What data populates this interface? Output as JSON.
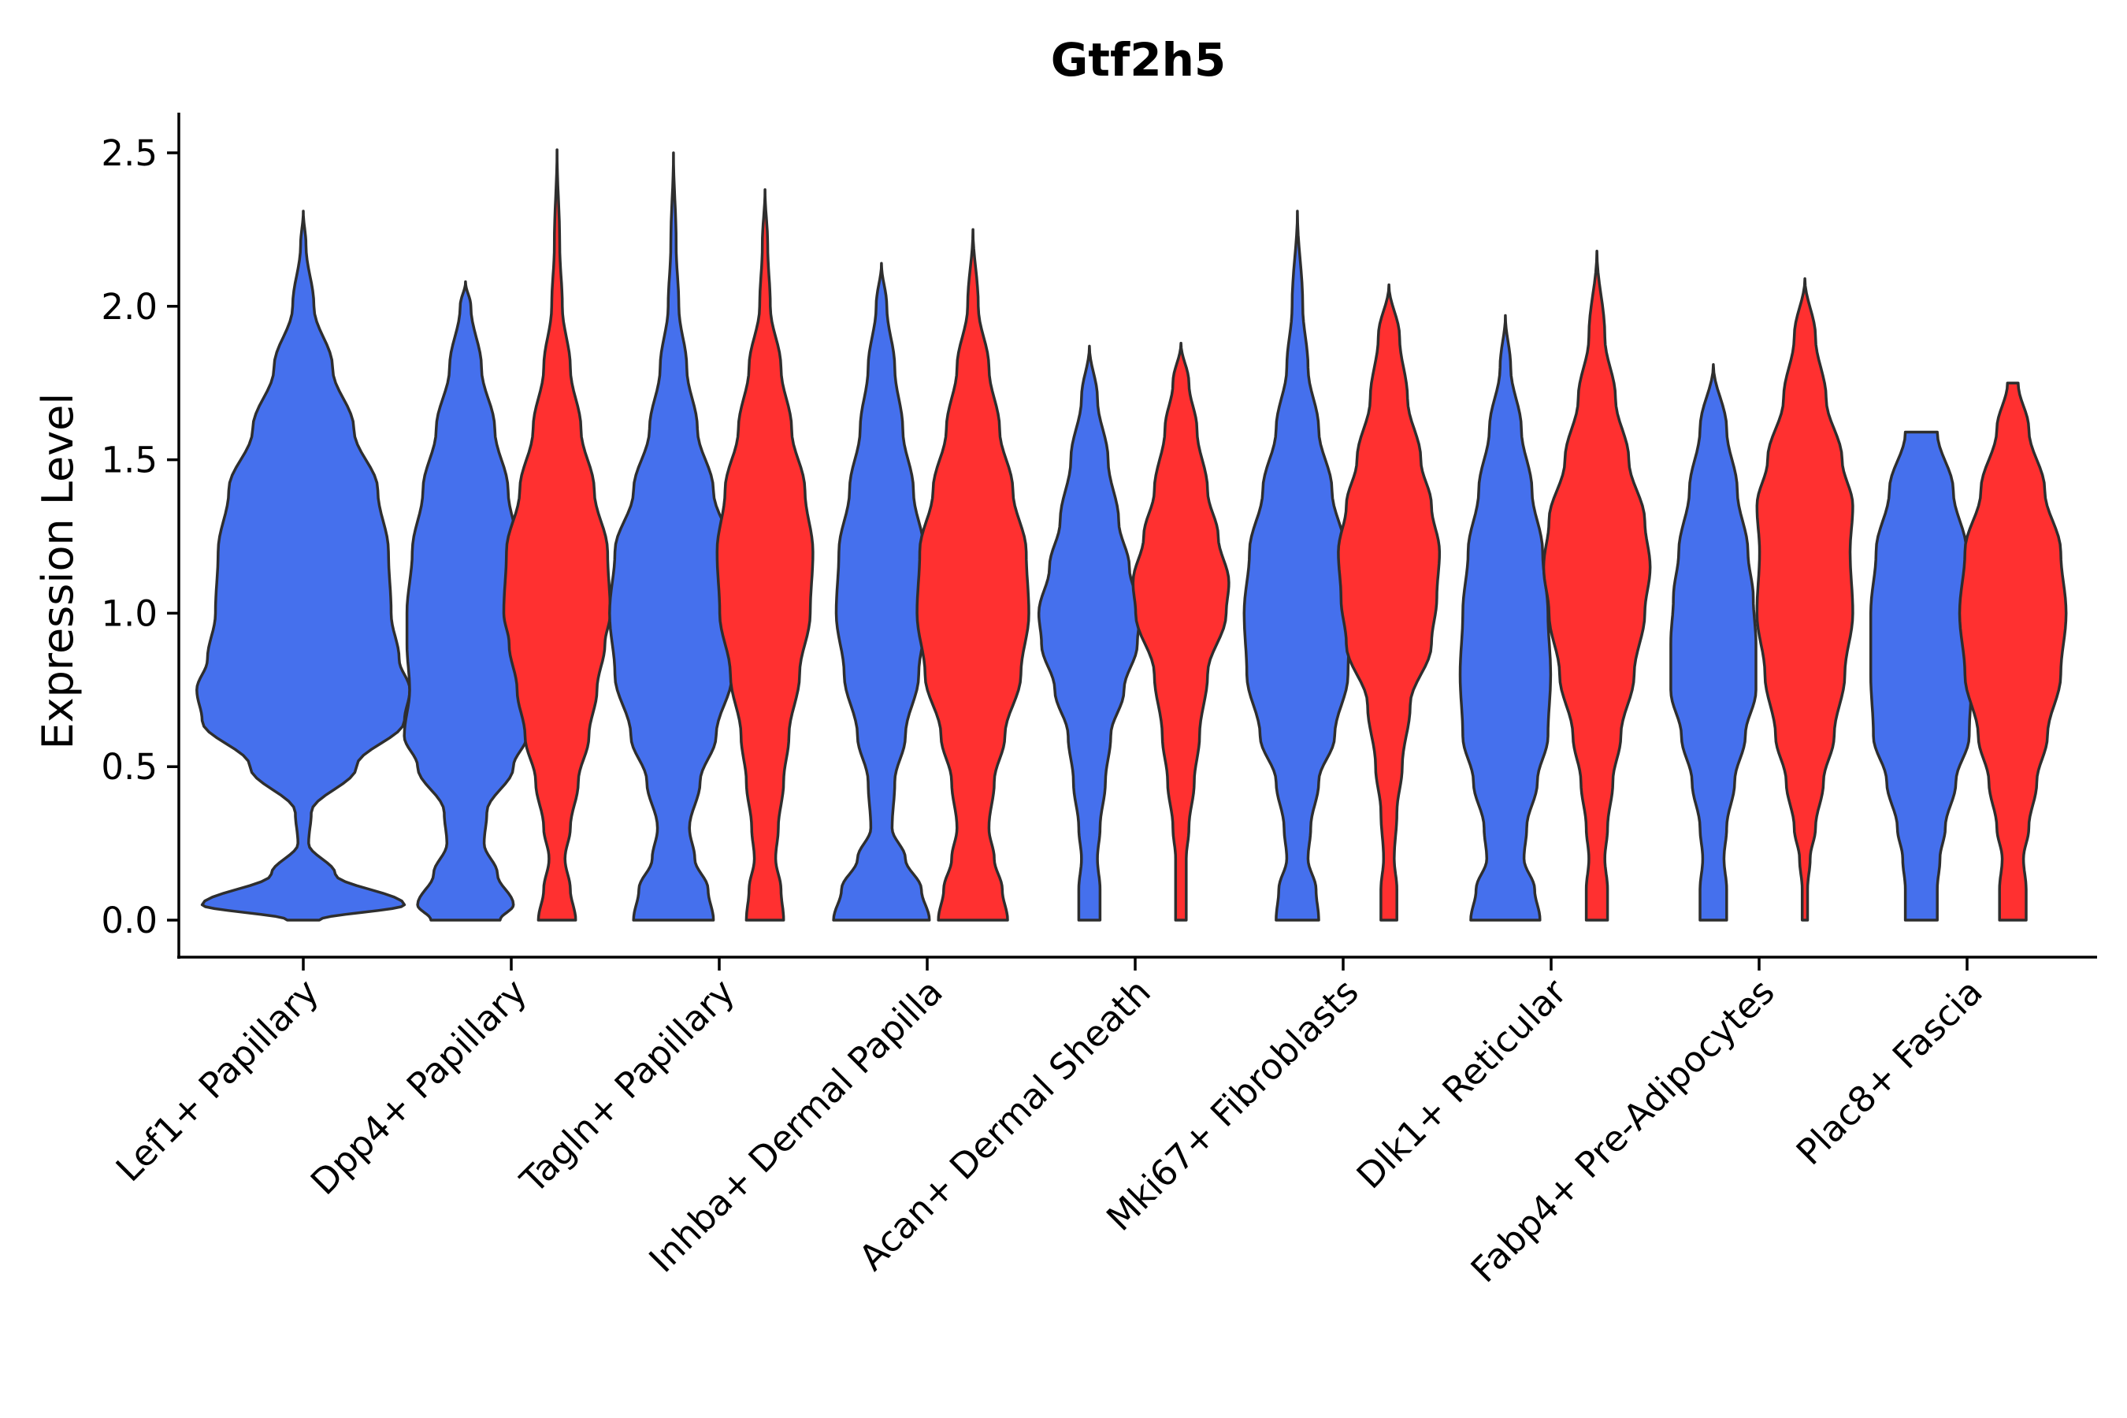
{
  "chart_data": {
    "type": "violin",
    "title": "Gtf2h5",
    "xlabel": "",
    "ylabel": "Expression Level",
    "ylim": [
      -0.12,
      2.63
    ],
    "yticks": [
      0.0,
      0.5,
      1.0,
      1.5,
      2.0,
      2.5
    ],
    "ytick_labels": [
      "0.0",
      "0.5",
      "1.0",
      "1.5",
      "2.0",
      "2.5"
    ],
    "categories": [
      "Lef1+ Papillary",
      "Dpp4+ Papillary",
      "Tagln+ Papillary",
      "Inhba+ Dermal Papilla",
      "Acan+ Dermal Sheath",
      "Mki67+ Fibroblasts",
      "Dlk1+ Reticular",
      "Fabp4+ Pre-Adipocytes",
      "Plac8+ Fascia"
    ],
    "series_colors": {
      "group1": "#4570ED",
      "group2": "#FF3030"
    },
    "violins": [
      {
        "category": 0,
        "color": "#4570ED",
        "offset": 0.0,
        "max": 2.31,
        "profile": [
          [
            0,
            0.06
          ],
          [
            0.05,
            0.38
          ],
          [
            0.15,
            0.12
          ],
          [
            0.25,
            0.02
          ],
          [
            0.35,
            0.03
          ],
          [
            0.5,
            0.2
          ],
          [
            0.65,
            0.38
          ],
          [
            0.75,
            0.4
          ],
          [
            0.85,
            0.36
          ],
          [
            1.0,
            0.33
          ],
          [
            1.2,
            0.32
          ],
          [
            1.4,
            0.28
          ],
          [
            1.6,
            0.19
          ],
          [
            1.8,
            0.11
          ],
          [
            2.0,
            0.04
          ],
          [
            2.2,
            0.01
          ],
          [
            2.31,
            0
          ]
        ]
      },
      {
        "category": 1,
        "color": "#4570ED",
        "offset": -0.22,
        "max": 2.08,
        "profile": [
          [
            0,
            0.13
          ],
          [
            0.05,
            0.18
          ],
          [
            0.15,
            0.12
          ],
          [
            0.25,
            0.07
          ],
          [
            0.35,
            0.08
          ],
          [
            0.5,
            0.18
          ],
          [
            0.6,
            0.23
          ],
          [
            0.75,
            0.21
          ],
          [
            0.9,
            0.22
          ],
          [
            1.0,
            0.22
          ],
          [
            1.2,
            0.2
          ],
          [
            1.4,
            0.16
          ],
          [
            1.6,
            0.11
          ],
          [
            1.8,
            0.06
          ],
          [
            2.0,
            0.02
          ],
          [
            2.08,
            0
          ]
        ]
      },
      {
        "category": 1,
        "color": "#FF3030",
        "offset": 0.22,
        "max": 2.51,
        "profile": [
          [
            0,
            0.07
          ],
          [
            0.1,
            0.05
          ],
          [
            0.2,
            0.03
          ],
          [
            0.3,
            0.05
          ],
          [
            0.45,
            0.08
          ],
          [
            0.6,
            0.12
          ],
          [
            0.75,
            0.15
          ],
          [
            0.9,
            0.18
          ],
          [
            1.0,
            0.2
          ],
          [
            1.2,
            0.19
          ],
          [
            1.4,
            0.14
          ],
          [
            1.6,
            0.09
          ],
          [
            1.8,
            0.05
          ],
          [
            2.0,
            0.02
          ],
          [
            2.2,
            0.01
          ],
          [
            2.51,
            0
          ]
        ]
      },
      {
        "category": 2,
        "color": "#4570ED",
        "offset": -0.22,
        "max": 2.5,
        "profile": [
          [
            0,
            0.15
          ],
          [
            0.1,
            0.13
          ],
          [
            0.2,
            0.08
          ],
          [
            0.3,
            0.06
          ],
          [
            0.45,
            0.1
          ],
          [
            0.6,
            0.16
          ],
          [
            0.8,
            0.22
          ],
          [
            1.0,
            0.24
          ],
          [
            1.2,
            0.22
          ],
          [
            1.4,
            0.15
          ],
          [
            1.6,
            0.09
          ],
          [
            1.8,
            0.05
          ],
          [
            2.0,
            0.02
          ],
          [
            2.2,
            0.01
          ],
          [
            2.5,
            0
          ]
        ]
      },
      {
        "category": 2,
        "color": "#FF3030",
        "offset": 0.22,
        "max": 2.38,
        "profile": [
          [
            0,
            0.07
          ],
          [
            0.1,
            0.06
          ],
          [
            0.2,
            0.04
          ],
          [
            0.3,
            0.05
          ],
          [
            0.45,
            0.07
          ],
          [
            0.6,
            0.09
          ],
          [
            0.8,
            0.13
          ],
          [
            1.0,
            0.17
          ],
          [
            1.2,
            0.18
          ],
          [
            1.4,
            0.15
          ],
          [
            1.6,
            0.1
          ],
          [
            1.8,
            0.06
          ],
          [
            2.0,
            0.02
          ],
          [
            2.2,
            0.01
          ],
          [
            2.38,
            0
          ]
        ]
      },
      {
        "category": 3,
        "color": "#4570ED",
        "offset": -0.22,
        "max": 2.14,
        "profile": [
          [
            0,
            0.18
          ],
          [
            0.1,
            0.15
          ],
          [
            0.2,
            0.09
          ],
          [
            0.3,
            0.04
          ],
          [
            0.45,
            0.05
          ],
          [
            0.6,
            0.09
          ],
          [
            0.8,
            0.14
          ],
          [
            1.0,
            0.17
          ],
          [
            1.2,
            0.16
          ],
          [
            1.4,
            0.12
          ],
          [
            1.6,
            0.08
          ],
          [
            1.8,
            0.05
          ],
          [
            2.0,
            0.02
          ],
          [
            2.14,
            0
          ]
        ]
      },
      {
        "category": 3,
        "color": "#FF3030",
        "offset": 0.22,
        "max": 2.25,
        "profile": [
          [
            0,
            0.13
          ],
          [
            0.1,
            0.11
          ],
          [
            0.2,
            0.08
          ],
          [
            0.3,
            0.06
          ],
          [
            0.45,
            0.08
          ],
          [
            0.6,
            0.12
          ],
          [
            0.8,
            0.18
          ],
          [
            1.0,
            0.21
          ],
          [
            1.2,
            0.2
          ],
          [
            1.4,
            0.15
          ],
          [
            1.6,
            0.1
          ],
          [
            1.8,
            0.06
          ],
          [
            2.0,
            0.02
          ],
          [
            2.25,
            0
          ]
        ]
      },
      {
        "category": 4,
        "color": "#4570ED",
        "offset": -0.22,
        "max": 1.87,
        "profile": [
          [
            0,
            0.04
          ],
          [
            0.1,
            0.04
          ],
          [
            0.2,
            0.03
          ],
          [
            0.3,
            0.04
          ],
          [
            0.45,
            0.06
          ],
          [
            0.6,
            0.08
          ],
          [
            0.75,
            0.13
          ],
          [
            0.9,
            0.18
          ],
          [
            1.0,
            0.19
          ],
          [
            1.15,
            0.15
          ],
          [
            1.3,
            0.11
          ],
          [
            1.5,
            0.07
          ],
          [
            1.7,
            0.03
          ],
          [
            1.87,
            0
          ]
        ]
      },
      {
        "category": 4,
        "color": "#FF3030",
        "offset": 0.22,
        "max": 1.88,
        "profile": [
          [
            0,
            0.02
          ],
          [
            0.1,
            0.02
          ],
          [
            0.2,
            0.02
          ],
          [
            0.3,
            0.03
          ],
          [
            0.45,
            0.05
          ],
          [
            0.6,
            0.07
          ],
          [
            0.8,
            0.1
          ],
          [
            1.0,
            0.17
          ],
          [
            1.1,
            0.18
          ],
          [
            1.25,
            0.14
          ],
          [
            1.4,
            0.1
          ],
          [
            1.6,
            0.06
          ],
          [
            1.75,
            0.03
          ],
          [
            1.88,
            0
          ]
        ]
      },
      {
        "category": 5,
        "color": "#4570ED",
        "offset": -0.22,
        "max": 2.31,
        "profile": [
          [
            0,
            0.08
          ],
          [
            0.1,
            0.07
          ],
          [
            0.2,
            0.04
          ],
          [
            0.3,
            0.05
          ],
          [
            0.45,
            0.08
          ],
          [
            0.6,
            0.14
          ],
          [
            0.8,
            0.19
          ],
          [
            1.0,
            0.2
          ],
          [
            1.2,
            0.18
          ],
          [
            1.4,
            0.13
          ],
          [
            1.6,
            0.08
          ],
          [
            1.8,
            0.04
          ],
          [
            2.0,
            0.02
          ],
          [
            2.31,
            0
          ]
        ]
      },
      {
        "category": 5,
        "color": "#FF3030",
        "offset": 0.22,
        "max": 2.07,
        "profile": [
          [
            0,
            0.03
          ],
          [
            0.1,
            0.03
          ],
          [
            0.2,
            0.02
          ],
          [
            0.35,
            0.03
          ],
          [
            0.5,
            0.05
          ],
          [
            0.7,
            0.08
          ],
          [
            0.9,
            0.16
          ],
          [
            1.05,
            0.18
          ],
          [
            1.2,
            0.19
          ],
          [
            1.35,
            0.16
          ],
          [
            1.5,
            0.12
          ],
          [
            1.7,
            0.07
          ],
          [
            1.9,
            0.04
          ],
          [
            2.07,
            0
          ]
        ]
      },
      {
        "category": 6,
        "color": "#4570ED",
        "offset": -0.22,
        "max": 1.97,
        "profile": [
          [
            0,
            0.13
          ],
          [
            0.1,
            0.11
          ],
          [
            0.2,
            0.07
          ],
          [
            0.3,
            0.08
          ],
          [
            0.45,
            0.12
          ],
          [
            0.6,
            0.16
          ],
          [
            0.8,
            0.17
          ],
          [
            1.0,
            0.16
          ],
          [
            1.2,
            0.14
          ],
          [
            1.4,
            0.1
          ],
          [
            1.6,
            0.06
          ],
          [
            1.8,
            0.02
          ],
          [
            1.97,
            0
          ]
        ]
      },
      {
        "category": 6,
        "color": "#FF3030",
        "offset": 0.22,
        "max": 2.18,
        "profile": [
          [
            0,
            0.04
          ],
          [
            0.1,
            0.04
          ],
          [
            0.2,
            0.03
          ],
          [
            0.3,
            0.04
          ],
          [
            0.45,
            0.06
          ],
          [
            0.6,
            0.09
          ],
          [
            0.8,
            0.14
          ],
          [
            1.0,
            0.18
          ],
          [
            1.15,
            0.2
          ],
          [
            1.3,
            0.18
          ],
          [
            1.5,
            0.12
          ],
          [
            1.7,
            0.07
          ],
          [
            1.9,
            0.03
          ],
          [
            2.18,
            0
          ]
        ]
      },
      {
        "category": 7,
        "color": "#4570ED",
        "offset": -0.22,
        "max": 1.81,
        "profile": [
          [
            0,
            0.05
          ],
          [
            0.1,
            0.05
          ],
          [
            0.2,
            0.04
          ],
          [
            0.3,
            0.05
          ],
          [
            0.45,
            0.08
          ],
          [
            0.6,
            0.12
          ],
          [
            0.75,
            0.16
          ],
          [
            0.9,
            0.16
          ],
          [
            1.05,
            0.15
          ],
          [
            1.2,
            0.13
          ],
          [
            1.4,
            0.09
          ],
          [
            1.6,
            0.05
          ],
          [
            1.81,
            0
          ]
        ]
      },
      {
        "category": 7,
        "color": "#FF3030",
        "offset": 0.22,
        "max": 2.09,
        "profile": [
          [
            0,
            0.01
          ],
          [
            0.1,
            0.01
          ],
          [
            0.2,
            0.02
          ],
          [
            0.3,
            0.04
          ],
          [
            0.45,
            0.07
          ],
          [
            0.6,
            0.11
          ],
          [
            0.8,
            0.15
          ],
          [
            1.0,
            0.18
          ],
          [
            1.2,
            0.17
          ],
          [
            1.35,
            0.18
          ],
          [
            1.5,
            0.14
          ],
          [
            1.7,
            0.08
          ],
          [
            1.9,
            0.04
          ],
          [
            2.09,
            0
          ]
        ]
      },
      {
        "category": 8,
        "color": "#4570ED",
        "offset": -0.22,
        "max": 1.59,
        "profile": [
          [
            0,
            0.06
          ],
          [
            0.1,
            0.06
          ],
          [
            0.2,
            0.07
          ],
          [
            0.3,
            0.09
          ],
          [
            0.45,
            0.13
          ],
          [
            0.6,
            0.18
          ],
          [
            0.8,
            0.19
          ],
          [
            1.0,
            0.19
          ],
          [
            1.2,
            0.17
          ],
          [
            1.4,
            0.12
          ],
          [
            1.59,
            0.06
          ]
        ]
      },
      {
        "category": 8,
        "color": "#FF3030",
        "offset": 0.22,
        "max": 1.75,
        "profile": [
          [
            0,
            0.05
          ],
          [
            0.1,
            0.05
          ],
          [
            0.2,
            0.04
          ],
          [
            0.3,
            0.06
          ],
          [
            0.45,
            0.09
          ],
          [
            0.6,
            0.13
          ],
          [
            0.8,
            0.18
          ],
          [
            1.0,
            0.2
          ],
          [
            1.2,
            0.18
          ],
          [
            1.4,
            0.12
          ],
          [
            1.6,
            0.06
          ],
          [
            1.75,
            0.02
          ]
        ]
      }
    ]
  }
}
